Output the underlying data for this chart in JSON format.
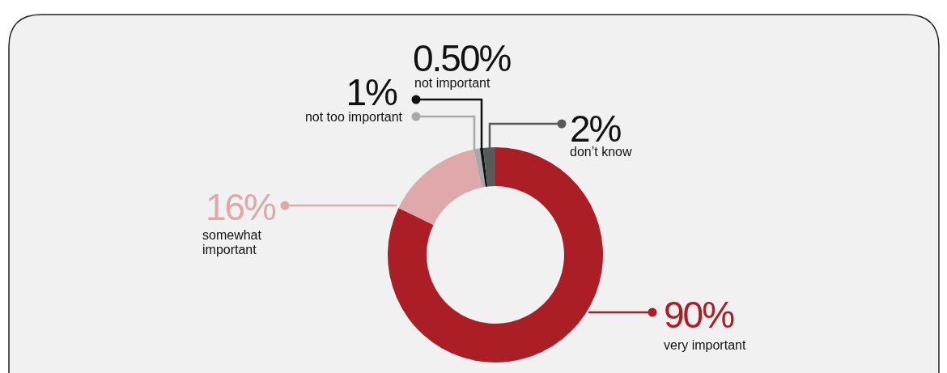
{
  "chart_data": {
    "type": "donut",
    "categories": [
      "very important",
      "somewhat important",
      "not too important",
      "not important",
      "don’t know"
    ],
    "values": [
      90,
      16,
      1,
      0.5,
      2
    ],
    "value_labels": [
      "90%",
      "16%",
      "1%",
      "0.50%",
      "2%"
    ],
    "colors": [
      "#ab1e25",
      "#dfa8aa",
      "#a7a9ac",
      "#111111",
      "#58595b"
    ]
  }
}
